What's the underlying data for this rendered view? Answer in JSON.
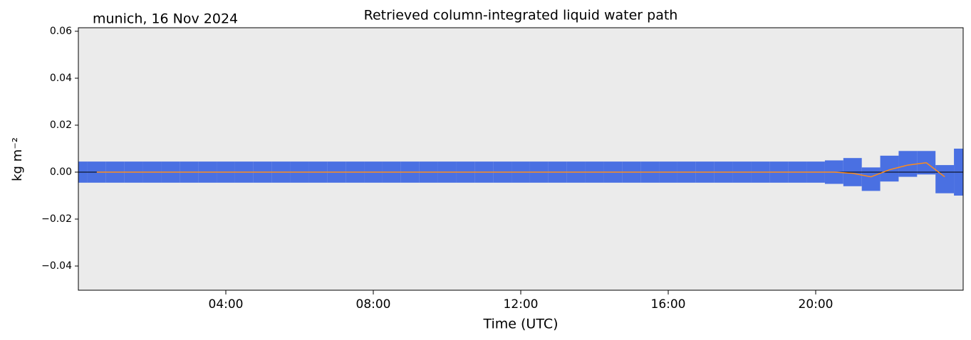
{
  "chart_data": {
    "type": "band_line",
    "title": "Retrieved column-integrated liquid water path",
    "subtitle": "munich, 16 Nov 2024",
    "x_label": "Time (UTC)",
    "y_label": "kg m⁻²",
    "xlim": [
      0,
      24
    ],
    "xticks": [
      {
        "value": 4,
        "label": "04:00"
      },
      {
        "value": 8,
        "label": "08:00"
      },
      {
        "value": 12,
        "label": "12:00"
      },
      {
        "value": 16,
        "label": "16:00"
      },
      {
        "value": 20,
        "label": "20:00"
      }
    ],
    "ylim": [
      -0.0503,
      0.0615
    ],
    "yticks": [
      {
        "value": -0.04,
        "label": "−0.04"
      },
      {
        "value": -0.02,
        "label": "−0.02"
      },
      {
        "value": 0,
        "label": "0.00"
      },
      {
        "value": 0.02,
        "label": "0.02"
      },
      {
        "value": 0.04,
        "label": "0.04"
      },
      {
        "value": 0.06,
        "label": "0.06"
      }
    ],
    "reference_line": 0,
    "x": [
      0,
      0.5,
      1,
      1.5,
      2,
      2.5,
      3,
      3.5,
      4,
      4.5,
      5,
      5.5,
      6,
      6.5,
      7,
      7.5,
      8,
      8.5,
      9,
      9.5,
      10,
      10.5,
      11,
      11.5,
      12,
      12.5,
      13,
      13.5,
      14,
      14.5,
      15,
      15.5,
      16,
      16.5,
      17,
      17.5,
      18,
      18.5,
      19,
      19.5,
      20,
      20.5,
      21,
      21.5,
      22,
      22.5,
      23,
      23.5,
      24
    ],
    "band": {
      "color": "#4169e1",
      "low": [
        -0.0045,
        -0.0045,
        -0.0045,
        -0.0045,
        -0.0045,
        -0.0045,
        -0.0045,
        -0.0045,
        -0.0045,
        -0.0045,
        -0.0045,
        -0.0045,
        -0.0045,
        -0.0045,
        -0.0045,
        -0.0045,
        -0.0045,
        -0.0045,
        -0.0045,
        -0.0045,
        -0.0045,
        -0.0045,
        -0.0045,
        -0.0045,
        -0.0045,
        -0.0045,
        -0.0045,
        -0.0045,
        -0.0045,
        -0.0045,
        -0.0045,
        -0.0045,
        -0.0045,
        -0.0045,
        -0.0045,
        -0.0045,
        -0.0045,
        -0.0045,
        -0.0045,
        -0.0045,
        -0.0045,
        -0.005,
        -0.006,
        -0.008,
        -0.004,
        -0.002,
        -0.001,
        -0.009,
        -0.01
      ],
      "high": [
        0.0045,
        0.0045,
        0.0045,
        0.0045,
        0.0045,
        0.0045,
        0.0045,
        0.0045,
        0.0045,
        0.0045,
        0.0045,
        0.0045,
        0.0045,
        0.0045,
        0.0045,
        0.0045,
        0.0045,
        0.0045,
        0.0045,
        0.0045,
        0.0045,
        0.0045,
        0.0045,
        0.0045,
        0.0045,
        0.0045,
        0.0045,
        0.0045,
        0.0045,
        0.0045,
        0.0045,
        0.0045,
        0.0045,
        0.0045,
        0.0045,
        0.0045,
        0.0045,
        0.0045,
        0.0045,
        0.0045,
        0.0045,
        0.005,
        0.006,
        0.002,
        0.007,
        0.009,
        0.009,
        0.003,
        0.01
      ]
    },
    "line": {
      "color": "#ff8c1a",
      "values": [
        null,
        0,
        0,
        0,
        0,
        0,
        0,
        0,
        0,
        0,
        0,
        0,
        0,
        0,
        0,
        0,
        0,
        0,
        0,
        0,
        0,
        0,
        0,
        0,
        0,
        0,
        0,
        0,
        0,
        0,
        0,
        0,
        0,
        0,
        0,
        0,
        0,
        0,
        0,
        0,
        0,
        0,
        -0.0005,
        -0.002,
        0.001,
        0.003,
        0.004,
        -0.002,
        null
      ]
    }
  }
}
